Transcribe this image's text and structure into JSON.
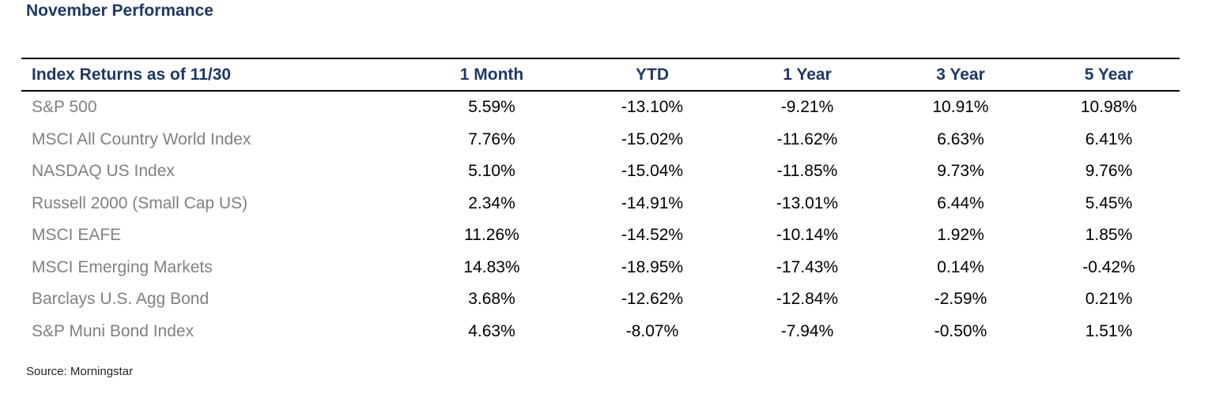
{
  "page": {
    "title": "November Performance",
    "source": "Source: Morningstar"
  },
  "colors": {
    "heading_navy": "#1F3864",
    "row_label_gray": "#808080",
    "value_black": "#000000",
    "border_black": "#000000"
  },
  "table": {
    "header": [
      "Index Returns as of 11/30",
      "1 Month",
      "YTD",
      "1 Year",
      "3 Year",
      "5 Year"
    ],
    "rows": [
      {
        "name": "S&P 500",
        "values": [
          "5.59%",
          "-13.10%",
          "-9.21%",
          "10.91%",
          "10.98%"
        ]
      },
      {
        "name": "MSCI All Country World Index",
        "values": [
          "7.76%",
          "-15.02%",
          "-11.62%",
          "6.63%",
          "6.41%"
        ]
      },
      {
        "name": "NASDAQ US Index",
        "values": [
          "5.10%",
          "-15.04%",
          "-11.85%",
          "9.73%",
          "9.76%"
        ]
      },
      {
        "name": "Russell 2000 (Small Cap US)",
        "values": [
          "2.34%",
          "-14.91%",
          "-13.01%",
          "6.44%",
          "5.45%"
        ]
      },
      {
        "name": "MSCI EAFE",
        "values": [
          "11.26%",
          "-14.52%",
          "-10.14%",
          "1.92%",
          "1.85%"
        ]
      },
      {
        "name": "MSCI Emerging Markets",
        "values": [
          "14.83%",
          "-18.95%",
          "-17.43%",
          "0.14%",
          "-0.42%"
        ]
      },
      {
        "name": "Barclays U.S. Agg Bond",
        "values": [
          "3.68%",
          "-12.62%",
          "-12.84%",
          "-2.59%",
          "0.21%"
        ]
      },
      {
        "name": "S&P Muni Bond Index",
        "values": [
          "4.63%",
          "-8.07%",
          "-7.94%",
          "-0.50%",
          "1.51%"
        ]
      }
    ]
  }
}
